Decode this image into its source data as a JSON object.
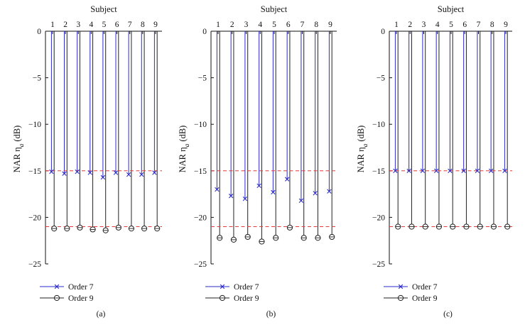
{
  "chart_data": [
    {
      "type": "stem",
      "panel_label": "(a)",
      "title": "Subject",
      "ylabel": "NAR η",
      "ylabel_subscript": "a",
      "ylabel_unit": "(dB)",
      "ylim": [
        -25,
        0
      ],
      "yticks": [
        0,
        -5,
        -10,
        -15,
        -20,
        -25
      ],
      "categories": [
        "1",
        "2",
        "3",
        "4",
        "5",
        "6",
        "7",
        "8",
        "9"
      ],
      "series": [
        {
          "name": "Order 7",
          "marker": "x",
          "color": "#2b2bcc",
          "values": [
            -15.1,
            -15.3,
            -15.1,
            -15.2,
            -15.7,
            -15.2,
            -15.4,
            -15.4,
            -15.2
          ]
        },
        {
          "name": "Order 9",
          "marker": "circle",
          "color": "#222222",
          "values": [
            -21.2,
            -21.2,
            -21.1,
            -21.3,
            -21.4,
            -21.1,
            -21.2,
            -21.2,
            -21.2
          ]
        }
      ],
      "reference_lines": [
        -15,
        -21
      ]
    },
    {
      "type": "stem",
      "panel_label": "(b)",
      "title": "Subject",
      "ylabel": "NAR η",
      "ylabel_subscript": "a",
      "ylabel_unit": "(dB)",
      "ylim": [
        -25,
        0
      ],
      "yticks": [
        0,
        -5,
        -10,
        -15,
        -20,
        -25
      ],
      "categories": [
        "1",
        "2",
        "3",
        "4",
        "5",
        "6",
        "7",
        "8",
        "9"
      ],
      "series": [
        {
          "name": "Order 7",
          "marker": "x",
          "color": "#2b2bcc",
          "values": [
            -17.0,
            -17.7,
            -18.0,
            -16.6,
            -17.3,
            -15.9,
            -18.2,
            -17.4,
            -17.2
          ]
        },
        {
          "name": "Order 9",
          "marker": "circle",
          "color": "#222222",
          "values": [
            -22.2,
            -22.4,
            -22.1,
            -22.6,
            -22.2,
            -21.1,
            -22.2,
            -22.2,
            -22.1
          ]
        }
      ],
      "reference_lines": [
        -15,
        -21
      ]
    },
    {
      "type": "stem",
      "panel_label": "(c)",
      "title": "Subject",
      "ylabel": "NAR η",
      "ylabel_subscript": "a",
      "ylabel_unit": "(dB)",
      "ylim": [
        -25,
        0
      ],
      "yticks": [
        0,
        -5,
        -10,
        -15,
        -20,
        -25
      ],
      "categories": [
        "1",
        "2",
        "3",
        "4",
        "5",
        "6",
        "7",
        "8",
        "9"
      ],
      "series": [
        {
          "name": "Order 7",
          "marker": "x",
          "color": "#2b2bcc",
          "values": [
            -15.0,
            -15.0,
            -15.0,
            -15.0,
            -15.0,
            -15.0,
            -15.0,
            -15.0,
            -15.0
          ]
        },
        {
          "name": "Order 9",
          "marker": "circle",
          "color": "#222222",
          "values": [
            -21.0,
            -21.0,
            -21.0,
            -21.0,
            -21.0,
            -21.0,
            -21.0,
            -21.0,
            -21.0
          ]
        }
      ],
      "reference_lines": [
        -15,
        -21
      ]
    }
  ],
  "colors": {
    "order7": "#2b2bcc",
    "order9": "#222222",
    "reference": "#e03a3a",
    "axis": "#111111"
  }
}
